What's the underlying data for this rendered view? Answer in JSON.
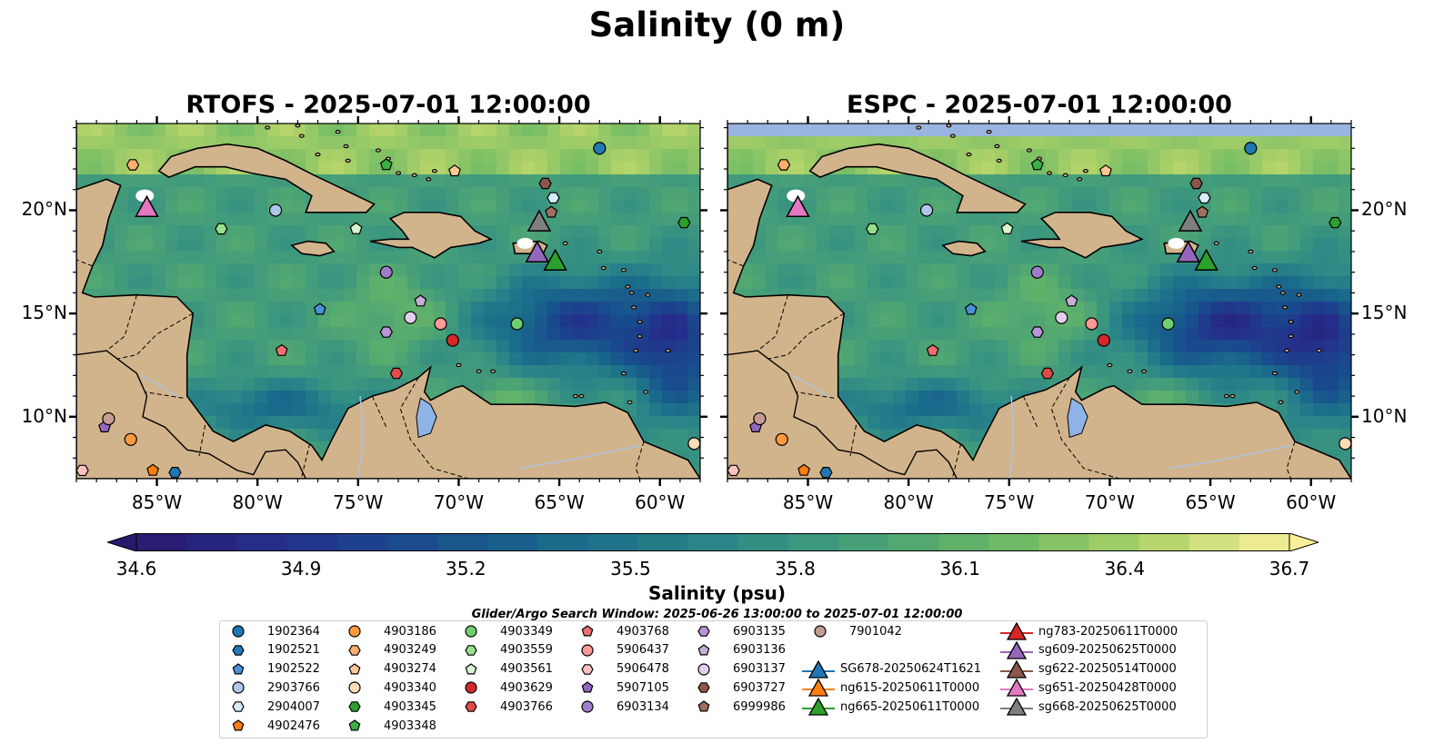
{
  "title": "Salinity (0 m)",
  "panels": [
    {
      "id": "rtofs",
      "title": "RTOFS - 2025-07-01 12:00:00"
    },
    {
      "id": "espc",
      "title": "ESPC - 2025-07-01 12:00:00"
    }
  ],
  "map": {
    "lon_range": [
      -89,
      -58
    ],
    "lat_range": [
      7,
      24.2
    ],
    "x_ticks": [
      "85°W",
      "80°W",
      "75°W",
      "70°W",
      "65°W",
      "60°W"
    ],
    "y_ticks": [
      "20°N",
      "15°N",
      "10°N"
    ],
    "land_color": "#d2b48c",
    "ocean_low_color": "#2a186c",
    "ocean_high_color": "#fbf09a"
  },
  "colorbar": {
    "label": "Salinity (psu)",
    "range": [
      34.6,
      36.7
    ],
    "ticks": [
      "34.6",
      "34.9",
      "35.2",
      "35.5",
      "35.8",
      "36.1",
      "36.4",
      "36.7"
    ],
    "colormap": "haline"
  },
  "search_window": "Glider/Argo Search Window: 2025-06-26 13:00:00 to 2025-07-01 12:00:00",
  "legend": {
    "floats": [
      {
        "id": "1902364",
        "marker": "circle",
        "color": "#1f77b4"
      },
      {
        "id": "1902521",
        "marker": "hexagon",
        "color": "#1f77b4"
      },
      {
        "id": "1902522",
        "marker": "pentagon",
        "color": "#4a90d9"
      },
      {
        "id": "2903766",
        "marker": "circle",
        "color": "#aec7e8"
      },
      {
        "id": "2904007",
        "marker": "hexagon",
        "color": "#d6ecfa"
      },
      {
        "id": "4902476",
        "marker": "pentagon",
        "color": "#ff7f0e"
      },
      {
        "id": "4903186",
        "marker": "circle",
        "color": "#ff9a3c"
      },
      {
        "id": "4903249",
        "marker": "hexagon",
        "color": "#ffb070"
      },
      {
        "id": "4903274",
        "marker": "pentagon",
        "color": "#ffc894"
      },
      {
        "id": "4903340",
        "marker": "circle",
        "color": "#ffdcb8"
      },
      {
        "id": "4903345",
        "marker": "hexagon",
        "color": "#2ca02c"
      },
      {
        "id": "4903348",
        "marker": "pentagon",
        "color": "#3cb043"
      },
      {
        "id": "4903349",
        "marker": "circle",
        "color": "#6fcf6f"
      },
      {
        "id": "4903559",
        "marker": "hexagon",
        "color": "#98df8a"
      },
      {
        "id": "4903561",
        "marker": "pentagon",
        "color": "#d9f5cf"
      },
      {
        "id": "4903629",
        "marker": "circle",
        "color": "#d62728"
      },
      {
        "id": "4903766",
        "marker": "hexagon",
        "color": "#e24a4a"
      },
      {
        "id": "4903768",
        "marker": "pentagon",
        "color": "#ee6f6f"
      },
      {
        "id": "5906437",
        "marker": "circle",
        "color": "#ff9896"
      },
      {
        "id": "5906478",
        "marker": "hexagon",
        "color": "#ffc2c0"
      },
      {
        "id": "5907105",
        "marker": "pentagon",
        "color": "#9467bd"
      },
      {
        "id": "6903134",
        "marker": "circle",
        "color": "#a07cc9"
      },
      {
        "id": "6903135",
        "marker": "hexagon",
        "color": "#b894d8"
      },
      {
        "id": "6903136",
        "marker": "pentagon",
        "color": "#c5b0d5"
      },
      {
        "id": "6903137",
        "marker": "circle",
        "color": "#e1cfee"
      },
      {
        "id": "6903727",
        "marker": "hexagon",
        "color": "#8c564b"
      },
      {
        "id": "6999986",
        "marker": "pentagon",
        "color": "#a0705f"
      },
      {
        "id": "7901042",
        "marker": "circle",
        "color": "#c49c94"
      }
    ],
    "gliders": [
      {
        "id": "SG678-20250624T1621",
        "color": "#1f77b4"
      },
      {
        "id": "ng615-20250611T0000",
        "color": "#ff7f0e"
      },
      {
        "id": "ng665-20250611T0000",
        "color": "#2ca02c"
      },
      {
        "id": "ng783-20250611T0000",
        "color": "#d62728"
      },
      {
        "id": "sg609-20250625T0000",
        "color": "#9467bd"
      },
      {
        "id": "sg622-20250514T0000",
        "color": "#8c564b"
      },
      {
        "id": "sg651-20250428T0000",
        "color": "#e377c2"
      },
      {
        "id": "sg668-20250625T0000",
        "color": "#7f7f7f"
      }
    ]
  },
  "float_positions": [
    {
      "id": "1902364",
      "lon": -63.0,
      "lat": 23.0
    },
    {
      "id": "1902521",
      "lon": -84.1,
      "lat": 7.3
    },
    {
      "id": "1902522",
      "lon": -76.9,
      "lat": 15.2
    },
    {
      "id": "2903766",
      "lon": -79.1,
      "lat": 20.0
    },
    {
      "id": "2904007",
      "lon": -65.3,
      "lat": 20.6
    },
    {
      "id": "4902476",
      "lon": -85.2,
      "lat": 7.4
    },
    {
      "id": "4903186",
      "lon": -86.3,
      "lat": 8.9
    },
    {
      "id": "4903249",
      "lon": -86.2,
      "lat": 22.2
    },
    {
      "id": "4903274",
      "lon": -70.2,
      "lat": 21.9
    },
    {
      "id": "4903340",
      "lon": -58.3,
      "lat": 8.7
    },
    {
      "id": "4903345",
      "lon": -58.8,
      "lat": 19.4
    },
    {
      "id": "4903348",
      "lon": -73.6,
      "lat": 22.2
    },
    {
      "id": "4903349",
      "lon": -67.1,
      "lat": 14.5
    },
    {
      "id": "4903559",
      "lon": -81.8,
      "lat": 19.1
    },
    {
      "id": "4903561",
      "lon": -75.1,
      "lat": 19.1
    },
    {
      "id": "4903629",
      "lon": -70.3,
      "lat": 13.7
    },
    {
      "id": "4903766",
      "lon": -73.1,
      "lat": 12.1
    },
    {
      "id": "4903768",
      "lon": -78.8,
      "lat": 13.2
    },
    {
      "id": "5906437",
      "lon": -70.9,
      "lat": 14.5
    },
    {
      "id": "5906478",
      "lon": -88.7,
      "lat": 7.4
    },
    {
      "id": "5907105",
      "lon": -87.6,
      "lat": 9.5
    },
    {
      "id": "6903134",
      "lon": -73.6,
      "lat": 17.0
    },
    {
      "id": "6903135",
      "lon": -73.6,
      "lat": 14.1
    },
    {
      "id": "6903136",
      "lon": -71.9,
      "lat": 15.6
    },
    {
      "id": "6903137",
      "lon": -72.4,
      "lat": 14.8
    },
    {
      "id": "6903727",
      "lon": -65.7,
      "lat": 21.3
    },
    {
      "id": "6999986",
      "lon": -65.4,
      "lat": 19.9
    },
    {
      "id": "7901042",
      "lon": -87.4,
      "lat": 9.9
    }
  ],
  "glider_positions": [
    {
      "id": "sg651-20250428T0000",
      "lon": -85.5,
      "lat": 20.1
    },
    {
      "id": "sg668-20250625T0000",
      "lon": -66.0,
      "lat": 19.4
    },
    {
      "id": "sg609-20250625T0000",
      "lon": -66.1,
      "lat": 17.9
    },
    {
      "id": "ng665-20250611T0000",
      "lon": -65.2,
      "lat": 17.5
    }
  ]
}
